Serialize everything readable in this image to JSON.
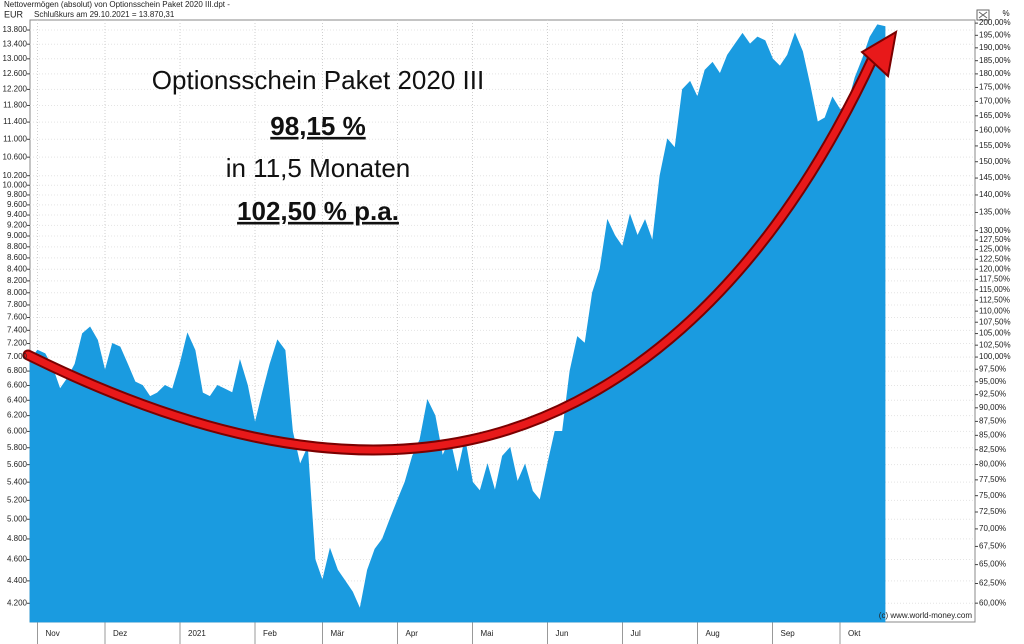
{
  "header": {
    "line1": "Nettovermögen (absolut) von Optionsschein Paket 2020 III.dpt -",
    "line2": "Schlußkurs am 29.10.2021 = 13.870,31",
    "left_unit": "EUR",
    "right_unit": "%"
  },
  "footer": "(c) www.world-money.com",
  "annotations": [
    "Optionsschein Paket 2020 III",
    "98,15 %",
    "in 11,5 Monaten",
    "102,50 % p.a."
  ],
  "chart_data": {
    "type": "area",
    "log_scale": true,
    "grid": true,
    "xlim": [
      0,
      126
    ],
    "xticks": [
      {
        "value": 1,
        "label": "Nov"
      },
      {
        "value": 10,
        "label": "Dez"
      },
      {
        "value": 20,
        "label": "2021"
      },
      {
        "value": 30,
        "label": "Feb"
      },
      {
        "value": 39,
        "label": "Mär"
      },
      {
        "value": 49,
        "label": "Apr"
      },
      {
        "value": 59,
        "label": "Mai"
      },
      {
        "value": 69,
        "label": "Jun"
      },
      {
        "value": 79,
        "label": "Jul"
      },
      {
        "value": 89,
        "label": "Aug"
      },
      {
        "value": 99,
        "label": "Sep"
      },
      {
        "value": 108,
        "label": "Okt"
      }
    ],
    "ylim": [
      4040,
      14090
    ],
    "yticks": [
      {
        "value": 4200,
        "label": "4.200"
      },
      {
        "value": 4400,
        "label": "4.400"
      },
      {
        "value": 4600,
        "label": "4.600"
      },
      {
        "value": 4800,
        "label": "4.800"
      },
      {
        "value": 5000,
        "label": "5.000"
      },
      {
        "value": 5200,
        "label": "5.200"
      },
      {
        "value": 5400,
        "label": "5.400"
      },
      {
        "value": 5600,
        "label": "5.600"
      },
      {
        "value": 5800,
        "label": "5.800"
      },
      {
        "value": 6000,
        "label": "6.000"
      },
      {
        "value": 6200,
        "label": "6.200"
      },
      {
        "value": 6400,
        "label": "6.400"
      },
      {
        "value": 6600,
        "label": "6.600"
      },
      {
        "value": 6800,
        "label": "6.800"
      },
      {
        "value": 7000,
        "label": "7.000"
      },
      {
        "value": 7200,
        "label": "7.200"
      },
      {
        "value": 7400,
        "label": "7.400"
      },
      {
        "value": 7600,
        "label": "7.600"
      },
      {
        "value": 7800,
        "label": "7.800"
      },
      {
        "value": 8000,
        "label": "8.000"
      },
      {
        "value": 8200,
        "label": "8.200"
      },
      {
        "value": 8400,
        "label": "8.400"
      },
      {
        "value": 8600,
        "label": "8.600"
      },
      {
        "value": 8800,
        "label": "8.800"
      },
      {
        "value": 9000,
        "label": "9.000"
      },
      {
        "value": 9200,
        "label": "9.200"
      },
      {
        "value": 9400,
        "label": "9.400"
      },
      {
        "value": 9600,
        "label": "9.600"
      },
      {
        "value": 9800,
        "label": "9.800"
      },
      {
        "value": 10000,
        "label": "10.000"
      },
      {
        "value": 10200,
        "label": "10.200"
      },
      {
        "value": 10600,
        "label": "10.600"
      },
      {
        "value": 11000,
        "label": "11.000"
      },
      {
        "value": 11400,
        "label": "11.400"
      },
      {
        "value": 11800,
        "label": "11.800"
      },
      {
        "value": 12200,
        "label": "12.200"
      },
      {
        "value": 12600,
        "label": "12.600"
      },
      {
        "value": 13000,
        "label": "13.000"
      },
      {
        "value": 13400,
        "label": "13.400"
      },
      {
        "value": 13800,
        "label": "13.800"
      }
    ],
    "y2lim": [
      57.7,
      201.3
    ],
    "y2ticks": [
      {
        "value": 60,
        "label": "60,00%"
      },
      {
        "value": 62.5,
        "label": "62,50%"
      },
      {
        "value": 65,
        "label": "65,00%"
      },
      {
        "value": 67.5,
        "label": "67,50%"
      },
      {
        "value": 70,
        "label": "70,00%"
      },
      {
        "value": 72.5,
        "label": "72,50%"
      },
      {
        "value": 75,
        "label": "75,00%"
      },
      {
        "value": 77.5,
        "label": "77,50%"
      },
      {
        "value": 80,
        "label": "80,00%"
      },
      {
        "value": 82.5,
        "label": "82,50%"
      },
      {
        "value": 85,
        "label": "85,00%"
      },
      {
        "value": 87.5,
        "label": "87,50%"
      },
      {
        "value": 90,
        "label": "90,00%"
      },
      {
        "value": 92.5,
        "label": "92,50%"
      },
      {
        "value": 95,
        "label": "95,00%"
      },
      {
        "value": 97.5,
        "label": "97,50%"
      },
      {
        "value": 100,
        "label": "100,00%"
      },
      {
        "value": 102.5,
        "label": "102,50%"
      },
      {
        "value": 105,
        "label": "105,00%"
      },
      {
        "value": 107.5,
        "label": "107,50%"
      },
      {
        "value": 110,
        "label": "110,00%"
      },
      {
        "value": 112.5,
        "label": "112,50%"
      },
      {
        "value": 115,
        "label": "115,00%"
      },
      {
        "value": 117.5,
        "label": "117,50%"
      },
      {
        "value": 120,
        "label": "120,00%"
      },
      {
        "value": 122.5,
        "label": "122,50%"
      },
      {
        "value": 125,
        "label": "125,00%"
      },
      {
        "value": 127.5,
        "label": "127,50%"
      },
      {
        "value": 130,
        "label": "130,00%"
      },
      {
        "value": 135,
        "label": "135,00%"
      },
      {
        "value": 140,
        "label": "140,00%"
      },
      {
        "value": 145,
        "label": "145,00%"
      },
      {
        "value": 150,
        "label": "150,00%"
      },
      {
        "value": 155,
        "label": "155,00%"
      },
      {
        "value": 160,
        "label": "160,00%"
      },
      {
        "value": 165,
        "label": "165,00%"
      },
      {
        "value": 170,
        "label": "170,00%"
      },
      {
        "value": 175,
        "label": "175,00%"
      },
      {
        "value": 180,
        "label": "180,00%"
      },
      {
        "value": 185,
        "label": "185,00%"
      },
      {
        "value": 190,
        "label": "190,00%"
      },
      {
        "value": 195,
        "label": "195,00%"
      },
      {
        "value": 200,
        "label": "200,00%"
      }
    ],
    "series": [
      {
        "color": "#1a9be0",
        "values": [
          6950,
          7100,
          7050,
          6850,
          6550,
          6700,
          6900,
          7350,
          7450,
          7250,
          6800,
          7200,
          7150,
          6900,
          6650,
          6600,
          6450,
          6500,
          6600,
          6550,
          6900,
          7350,
          7100,
          6500,
          6450,
          6600,
          6550,
          6500,
          6950,
          6600,
          6100,
          6500,
          6900,
          7250,
          7100,
          6000,
          5600,
          5800,
          4600,
          4400,
          4700,
          4500,
          4400,
          4300,
          4150,
          4500,
          4700,
          4800,
          5000,
          5200,
          5400,
          5700,
          5900,
          6400,
          6200,
          5700,
          5900,
          5500,
          5900,
          5400,
          5300,
          5600,
          5300,
          5700,
          5800,
          5400,
          5600,
          5300,
          5200,
          5600,
          6000,
          6000,
          6800,
          7300,
          7200,
          8000,
          8400,
          9300,
          9000,
          8800,
          9400,
          9000,
          9300,
          8900,
          10200,
          11000,
          10800,
          12200,
          12400,
          12000,
          12700,
          12900,
          12600,
          13100,
          13400,
          13700,
          13400,
          13600,
          13500,
          13000,
          12800,
          13100,
          13700,
          13200,
          12300,
          11400,
          11500,
          12000,
          11700,
          11800,
          12500,
          13000,
          13600,
          13950,
          13900
        ]
      }
    ]
  }
}
